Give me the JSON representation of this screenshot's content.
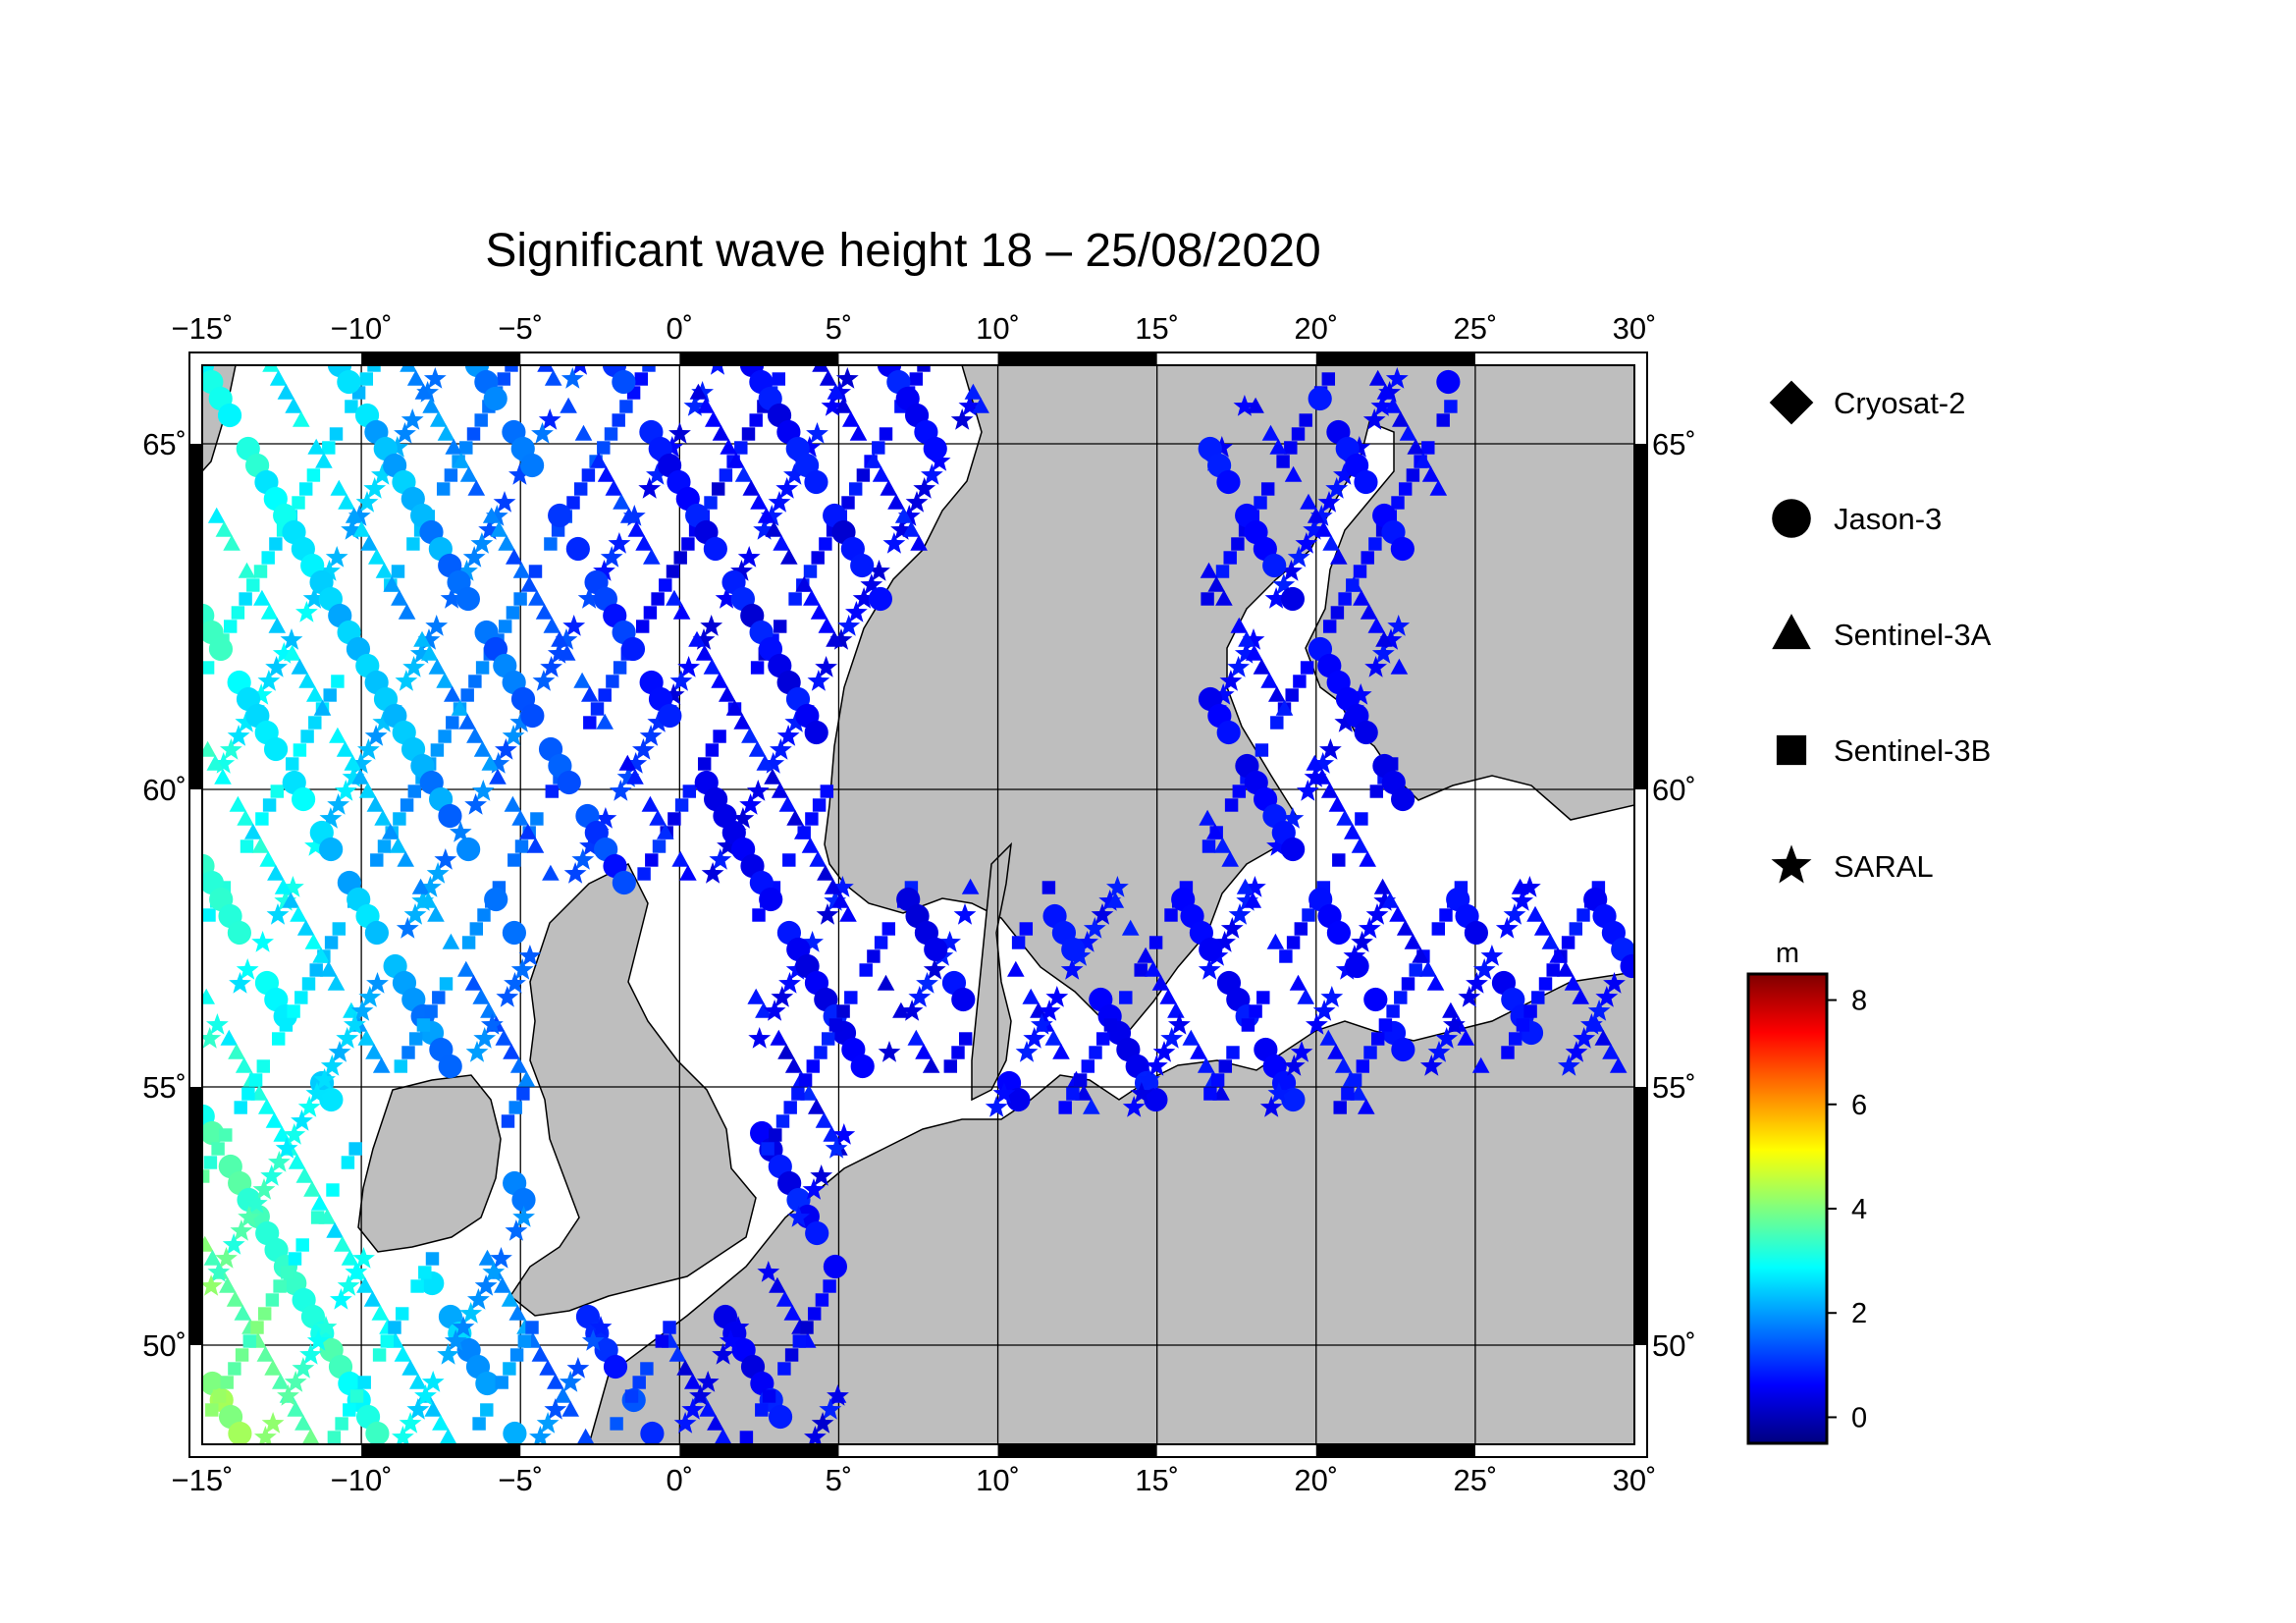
{
  "title": "Significant wave height 18 – 25/08/2020",
  "map": {
    "lon_range": [
      -15,
      30
    ],
    "lat_range": [
      48.3,
      66.3
    ],
    "lon_ticks": [
      {
        "v": -15,
        "label": "−15˚"
      },
      {
        "v": -10,
        "label": "−10˚"
      },
      {
        "v": -5,
        "label": "−5˚"
      },
      {
        "v": 0,
        "label": "0˚"
      },
      {
        "v": 5,
        "label": "5˚"
      },
      {
        "v": 10,
        "label": "10˚"
      },
      {
        "v": 15,
        "label": "15˚"
      },
      {
        "v": 20,
        "label": "20˚"
      },
      {
        "v": 25,
        "label": "25˚"
      },
      {
        "v": 30,
        "label": "30˚"
      }
    ],
    "lat_ticks": [
      {
        "v": 50,
        "label": "50˚"
      },
      {
        "v": 55,
        "label": "55˚"
      },
      {
        "v": 60,
        "label": "60˚"
      },
      {
        "v": 65,
        "label": "65˚"
      }
    ],
    "land_color": "#bebebe",
    "sea_color": "#ffffff",
    "grid": true
  },
  "legend": {
    "items": [
      {
        "symbol": "diamond-icon",
        "label": "Cryosat-2"
      },
      {
        "symbol": "circle-icon",
        "label": "Jason-3"
      },
      {
        "symbol": "triangle-icon",
        "label": "Sentinel-3A"
      },
      {
        "symbol": "square-icon",
        "label": "Sentinel-3B"
      },
      {
        "symbol": "star-icon",
        "label": "SARAL"
      }
    ]
  },
  "colorbar": {
    "unit": "m",
    "range": [
      -0.5,
      8.5
    ],
    "ticks": [
      {
        "v": 0,
        "label": "0"
      },
      {
        "v": 2,
        "label": "2"
      },
      {
        "v": 4,
        "label": "4"
      },
      {
        "v": 6,
        "label": "6"
      },
      {
        "v": 8,
        "label": "8"
      }
    ],
    "colors": [
      "#00007f",
      "#0000ff",
      "#007fff",
      "#00ffff",
      "#7fff7f",
      "#ffff00",
      "#ff7f00",
      "#ff0000",
      "#7f0000"
    ]
  }
}
